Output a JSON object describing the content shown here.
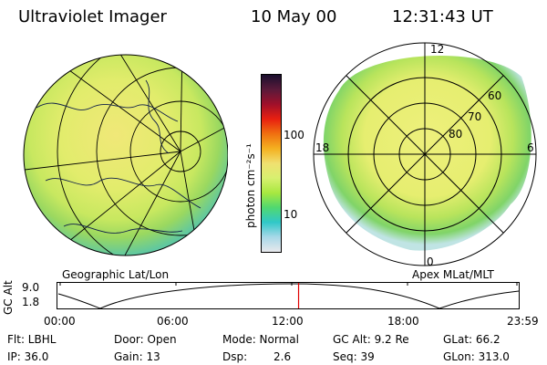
{
  "header": {
    "title": "Ultraviolet Imager",
    "date": "10 May 00",
    "time": "12:31:43 UT"
  },
  "colorbar": {
    "unit_label": "photon cm⁻²s⁻¹",
    "tick_labels": [
      "100",
      "10"
    ],
    "colors": [
      "#1a0f2e",
      "#5a1a3a",
      "#a0102a",
      "#e82010",
      "#f07010",
      "#f4b020",
      "#f0e070",
      "#d8f070",
      "#a8e840",
      "#50d870",
      "#30c8c8",
      "#a8d8e8",
      "#e8e8ec"
    ]
  },
  "left_panel": {
    "label": "Geographic Lat/Lon"
  },
  "right_panel": {
    "label": "Apex MLat/MLT",
    "mlt_labels": {
      "top": "12",
      "left": "18",
      "right": "6",
      "bottom": "0"
    },
    "lat_labels": [
      "60",
      "70",
      "80"
    ]
  },
  "altitude_plot": {
    "ylabel": "GC Alt",
    "y_ticks": [
      "9.0",
      "1.8"
    ],
    "x_ticks": [
      "00:00",
      "06:00",
      "12:00",
      "18:00",
      "23:59"
    ],
    "marker_color": "#e00000",
    "marker_time_fraction": 0.522
  },
  "info": {
    "row1": {
      "filter": "Flt: LBHL",
      "door": "Door: Open",
      "mode": "Mode: Normal",
      "gc_alt": "GC Alt: 9.2 Re",
      "glat": "GLat: 66.2"
    },
    "row2": {
      "ip": "IP: 36.0",
      "gain": "Gain: 13",
      "dsp_label": "Dsp:",
      "dsp_value": "2.6",
      "seq": "Seq: 39",
      "glon": "GLon: 313.0"
    }
  }
}
